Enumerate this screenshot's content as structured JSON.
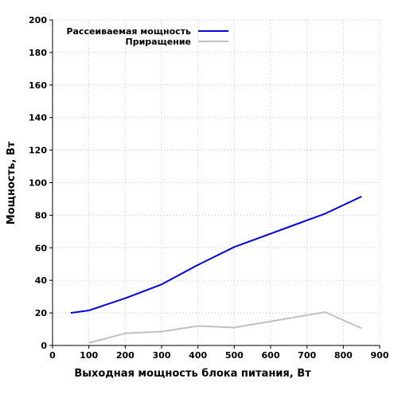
{
  "chart_data": {
    "type": "line",
    "xlabel": "Выходная мощность блока питания, Вт",
    "ylabel": "Мощность, Вт",
    "xlim": [
      0,
      900
    ],
    "ylim": [
      0,
      200
    ],
    "xticks": [
      0,
      100,
      200,
      300,
      400,
      500,
      600,
      700,
      800,
      900
    ],
    "yticks": [
      0,
      20,
      40,
      60,
      80,
      100,
      120,
      140,
      160,
      180,
      200
    ],
    "grid": true,
    "legend_position": "top-left",
    "series": [
      {
        "name": "Рассеиваемая мощность",
        "color": "#0000e0",
        "x": [
          50,
          100,
          200,
          300,
          400,
          500,
          750,
          850
        ],
        "y": [
          20,
          21.5,
          29,
          37.5,
          49.5,
          60.5,
          81,
          91.5
        ]
      },
      {
        "name": "Приращение",
        "color": "#c0c0c0",
        "x": [
          100,
          200,
          300,
          400,
          500,
          750,
          850
        ],
        "y": [
          1.5,
          7.5,
          8.5,
          12,
          11,
          20.5,
          10.5
        ]
      }
    ]
  }
}
